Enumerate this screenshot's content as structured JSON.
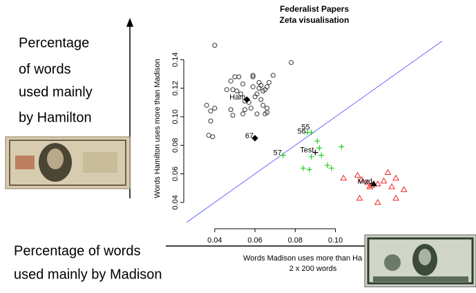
{
  "slide": {
    "y_caption": [
      "Percentage",
      "of words",
      "used mainly",
      "by Hamilton"
    ],
    "x_caption": [
      "Percentage of words",
      "used mainly by Madison"
    ]
  },
  "chart_data": {
    "type": "scatter",
    "title": "Federalist Papers",
    "subtitle": "Zeta visualisation",
    "x_label": "Words Madison uses more than Ha",
    "x_sublabel": "2 x 200 words",
    "y_label": "Words Hamilton uses more than Madison",
    "xlim": [
      0.026,
      0.153
    ],
    "ylim": [
      0.0235,
      0.16
    ],
    "xticks": [
      0.04,
      0.06,
      0.08,
      {
        "value": 0.1,
        "label": "0.10"
      }
    ],
    "yticks": [
      0.04,
      0.06,
      0.08,
      {
        "value": 0.1,
        "label": "0.10"
      },
      0.12,
      0.14
    ],
    "diagonal_color": "#6a6aff",
    "series": [
      {
        "marker": "circle",
        "color": "#333333",
        "x": [
          0.04,
          0.036,
          0.038,
          0.04,
          0.038,
          0.037,
          0.039,
          0.046,
          0.048,
          0.05,
          0.052,
          0.049,
          0.051,
          0.054,
          0.053,
          0.059,
          0.059,
          0.059,
          0.06,
          0.055,
          0.057,
          0.058,
          0.061,
          0.062,
          0.062,
          0.063,
          0.063,
          0.064,
          0.065,
          0.066,
          0.067,
          0.064,
          0.066,
          0.066,
          0.061,
          0.065,
          0.078,
          0.069,
          0.049,
          0.048,
          0.054,
          0.055
        ],
        "values": [
          0.15,
          0.108,
          0.104,
          0.106,
          0.097,
          0.087,
          0.086,
          0.119,
          0.125,
          0.128,
          0.128,
          0.119,
          0.118,
          0.123,
          0.116,
          0.129,
          0.128,
          0.121,
          0.114,
          0.111,
          0.11,
          0.106,
          0.116,
          0.12,
          0.124,
          0.122,
          0.112,
          0.118,
          0.119,
          0.121,
          0.124,
          0.108,
          0.106,
          0.103,
          0.102,
          0.102,
          0.138,
          0.129,
          0.101,
          0.105,
          0.102,
          0.105
        ]
      },
      {
        "marker": "triangle",
        "color": "#ee2222",
        "x": [
          0.111,
          0.113,
          0.117,
          0.118,
          0.121,
          0.124,
          0.126,
          0.128,
          0.13,
          0.134,
          0.13,
          0.112,
          0.121,
          0.116,
          0.104
        ],
        "values": [
          0.059,
          0.056,
          0.051,
          0.052,
          0.053,
          0.055,
          0.061,
          0.051,
          0.057,
          0.049,
          0.043,
          0.043,
          0.04,
          0.054,
          0.057
        ]
      },
      {
        "marker": "plus",
        "color": "#22cc22",
        "x": [
          0.091,
          0.092,
          0.093,
          0.088,
          0.103,
          0.096,
          0.098,
          0.084,
          0.087,
          0.074,
          0.088,
          0.086
        ],
        "values": [
          0.083,
          0.078,
          0.073,
          0.072,
          0.079,
          0.066,
          0.064,
          0.064,
          0.063,
          0.073,
          0.089,
          0.089
        ]
      }
    ],
    "annotations": [
      {
        "text": "Ham",
        "x": 0.056,
        "y": 0.112,
        "marker": "diamond"
      },
      {
        "text": "67",
        "x": 0.06,
        "y": 0.085,
        "marker": "diamond"
      },
      {
        "text": "Mad",
        "x": 0.119,
        "y": 0.053,
        "marker": "triangle"
      },
      {
        "text": "Test",
        "x": 0.09,
        "y": 0.075,
        "marker": "plus"
      },
      {
        "text": "55",
        "x": 0.088,
        "y": 0.091
      },
      {
        "text": "56",
        "x": 0.086,
        "y": 0.088
      },
      {
        "text": "57",
        "x": 0.074,
        "y": 0.073
      }
    ]
  }
}
